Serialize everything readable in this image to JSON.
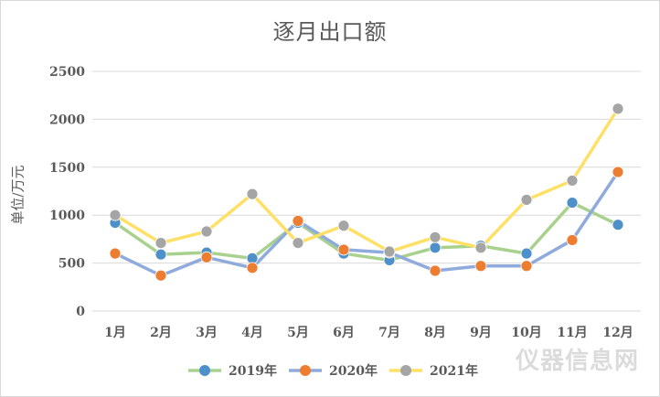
{
  "watermark": "仪器信息网",
  "chart_data": {
    "type": "line",
    "title": "逐月出口额",
    "xlabel": "",
    "ylabel": "单位/万元",
    "ylim": [
      0,
      2500
    ],
    "yticks": [
      0,
      500,
      1000,
      1500,
      2000,
      2500
    ],
    "grid": true,
    "legend_position": "bottom",
    "categories": [
      "1月",
      "2月",
      "3月",
      "4月",
      "5月",
      "6月",
      "7月",
      "8月",
      "9月",
      "10月",
      "11月",
      "12月"
    ],
    "series": [
      {
        "name": "2019年",
        "line_color": "#a9d18e",
        "marker_color": "#4e90c9",
        "values": [
          920,
          590,
          610,
          550,
          920,
          600,
          530,
          660,
          680,
          600,
          1130,
          900
        ]
      },
      {
        "name": "2020年",
        "line_color": "#8faadc",
        "marker_color": "#ed7d31",
        "values": [
          600,
          370,
          560,
          450,
          940,
          640,
          610,
          420,
          470,
          470,
          740,
          1450
        ]
      },
      {
        "name": "2021年",
        "line_color": "#ffe066",
        "marker_color": "#a5a5a5",
        "values": [
          1000,
          710,
          830,
          1220,
          710,
          890,
          620,
          770,
          660,
          1160,
          1360,
          2110
        ]
      }
    ]
  }
}
